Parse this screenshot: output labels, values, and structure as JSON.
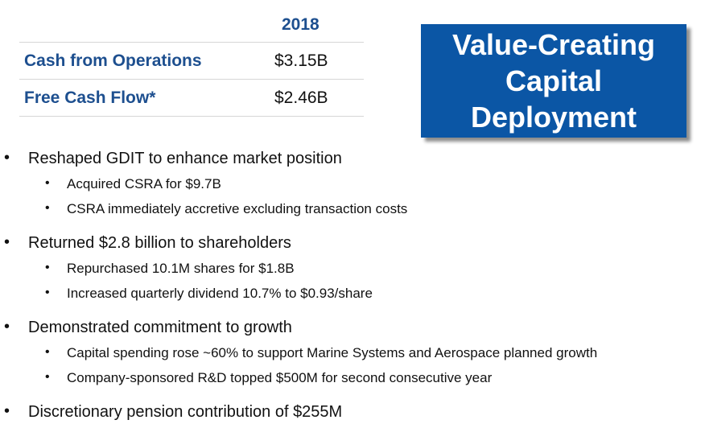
{
  "table": {
    "year_header": "2018",
    "rows": [
      {
        "label": "Cash from Operations",
        "value": "$3.15B"
      },
      {
        "label": "Free Cash Flow*",
        "value": "$2.46B"
      }
    ]
  },
  "title_box": {
    "text": "Value-Creating\nCapital\nDeployment",
    "background": "#0b56a5"
  },
  "bullet_glyph": "•",
  "bullets": [
    {
      "text": "Reshaped GDIT to enhance market position",
      "sub": [
        "Acquired CSRA for $9.7B",
        "CSRA immediately accretive excluding transaction costs"
      ]
    },
    {
      "text": "Returned $2.8 billion to shareholders",
      "sub": [
        "Repurchased 10.1M shares for $1.8B",
        "Increased quarterly dividend 10.7% to $0.93/share"
      ]
    },
    {
      "text": "Demonstrated commitment to growth",
      "sub": [
        "Capital spending rose ~60% to support Marine Systems and Aerospace planned growth",
        "Company-sponsored R&D topped $500M for second consecutive year"
      ]
    },
    {
      "text": "Discretionary pension contribution of $255M",
      "sub": []
    }
  ],
  "colors": {
    "table_text": "#1d4f8f",
    "body_text": "#111111",
    "rule": "#d6d6d6"
  }
}
